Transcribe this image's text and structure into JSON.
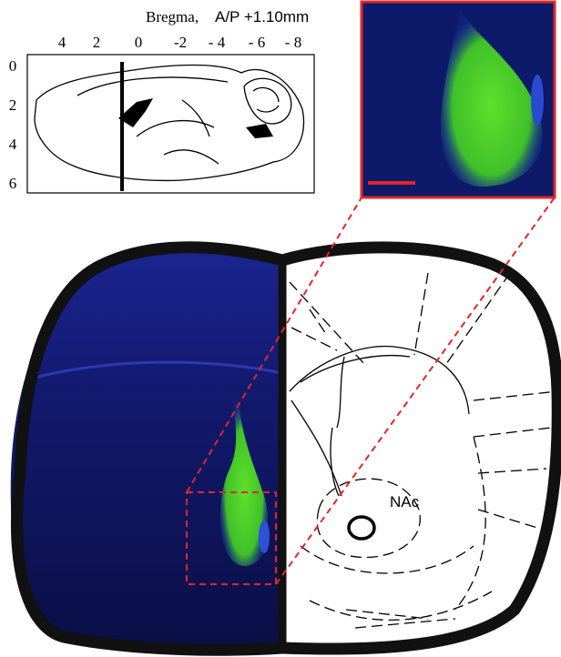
{
  "header": {
    "bregma": "Bregma,",
    "position": "A/P +1.10mm"
  },
  "sagittal_axis": {
    "top_ticks": [
      "4",
      "2",
      "0",
      "-2",
      "- 4",
      "- 6",
      "- 8"
    ],
    "left_ticks": [
      "0",
      "2",
      "4",
      "6"
    ]
  },
  "coronal_section": {
    "region_label": "NAc"
  }
}
